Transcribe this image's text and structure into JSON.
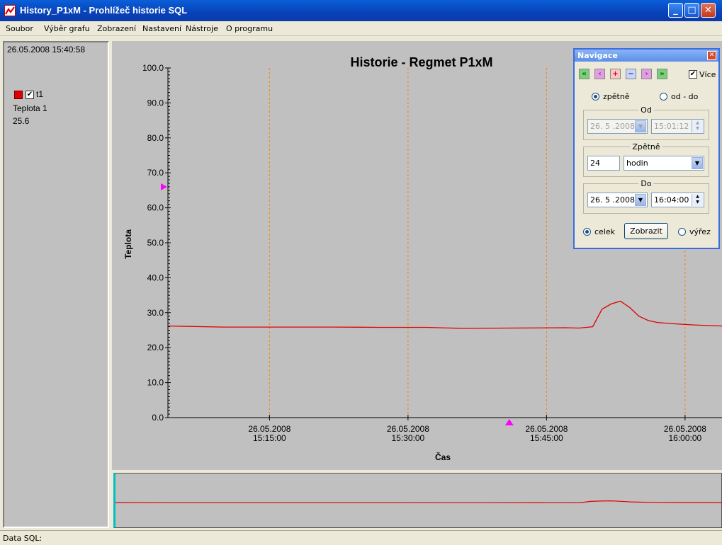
{
  "window": {
    "title": "History_P1xM - Prohlížeč historie SQL"
  },
  "menu": [
    "Soubor",
    "Výběr grafu",
    "Zobrazení",
    "Nastavení",
    "Nástroje",
    "O programu"
  ],
  "left_panel": {
    "timestamp": "26.05.2008  15:40:58",
    "series_tag": "t1",
    "series_desc": "Teplota 1",
    "series_value": "25.6",
    "series_checked": true,
    "series_color": "#e00000"
  },
  "chart_data": {
    "type": "line",
    "title": "Historie - Regmet P1xM",
    "xlabel": "Čas",
    "ylabel": "Teplota",
    "ylim": [
      0,
      100
    ],
    "yticks": [
      "0.0",
      "10.0",
      "20.0",
      "30.0",
      "40.0",
      "50.0",
      "60.0",
      "70.0",
      "80.0",
      "90.0",
      "100.0"
    ],
    "xlim": [
      "15:04:00",
      "16:04:00"
    ],
    "xticks": [
      {
        "date": "26.05.2008",
        "time": "15:15:00"
      },
      {
        "date": "26.05.2008",
        "time": "15:30:00"
      },
      {
        "date": "26.05.2008",
        "time": "15:45:00"
      },
      {
        "date": "26.05.2008",
        "time": "16:00:00"
      }
    ],
    "grid": "vertical dashed",
    "line_color": "#e00000",
    "grid_color": "#ff8000",
    "marker_time": "15:40:58",
    "marker_value": 66,
    "series": [
      {
        "x": [
          "15:04:00",
          "15:10:00",
          "15:17:00",
          "15:22:00",
          "15:27:00",
          "15:32:00",
          "15:36:00",
          "15:41:00",
          "15:47:00",
          "15:48:30",
          "15:50:00",
          "15:51:00",
          "15:52:00",
          "15:53:00",
          "15:54:00",
          "15:55:00",
          "15:56:00",
          "15:57:00",
          "15:59:00",
          "16:01:00",
          "16:04:00"
        ],
        "values": [
          26.2,
          25.9,
          25.9,
          25.9,
          25.8,
          25.8,
          25.5,
          25.6,
          25.7,
          25.6,
          26.0,
          31.0,
          32.5,
          33.3,
          31.5,
          29.0,
          27.8,
          27.2,
          26.8,
          26.5,
          26.2
        ]
      }
    ]
  },
  "navigation": {
    "title": "Navigace",
    "more_label": "Více",
    "more_checked": true,
    "mode_back_label": "zpětně",
    "mode_range_label": "od - do",
    "mode_selected": "zpětně",
    "from_group": "Od",
    "from_date": "26. 5 .2008",
    "from_time": "15:01:12",
    "back_group": "Zpětně",
    "back_value": "24",
    "back_unit": "hodin",
    "to_group": "Do",
    "to_date": "26. 5 .2008",
    "to_time": "16:04:00",
    "whole_label": "celek",
    "show_button": "Zobrazit",
    "cutout_label": "výřez",
    "view_selected": "celek"
  },
  "status": {
    "text": "Data SQL:"
  }
}
